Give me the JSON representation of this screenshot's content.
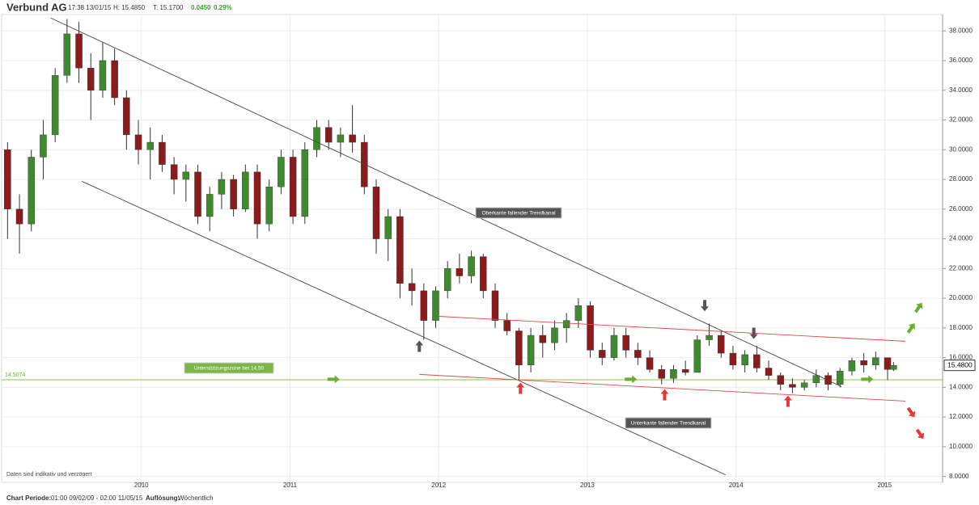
{
  "header": {
    "title": "Verbund AG",
    "time": "17:38 13/01/15",
    "high": "H: 15.4850",
    "low": "T: 15.1700",
    "change": "0.0450",
    "change_pct": "0.29%"
  },
  "footer": {
    "period_label": "Chart Periode:",
    "period": "01:00 09/02/09 - 02:00 11/05/15",
    "resolution_label": "Auflösung:",
    "resolution": "Wöchentlich"
  },
  "chart_data": {
    "type": "candlestick",
    "note": "Daten sind indikativ und verzögert",
    "xlim": [
      2009.06,
      2015.39
    ],
    "xticks": [
      2010,
      2011,
      2012,
      2013,
      2014,
      2015
    ],
    "ylim": [
      7.6,
      39.1
    ],
    "yticks": [
      {
        "value": 8,
        "label": "8.0000"
      },
      {
        "value": 10,
        "label": "10.0000"
      },
      {
        "value": 12,
        "label": "12.0000"
      },
      {
        "value": 14,
        "label": "14.0000"
      },
      {
        "value": 16,
        "label": "16.0000"
      },
      {
        "value": 18,
        "label": "18.0000"
      },
      {
        "value": 20,
        "label": "20.0000"
      },
      {
        "value": 22,
        "label": "22.0000"
      },
      {
        "value": 24,
        "label": "24.0000"
      },
      {
        "value": 26,
        "label": "26.0000"
      },
      {
        "value": 28,
        "label": "28.0000"
      },
      {
        "value": 30,
        "label": "30.0000"
      },
      {
        "value": 32,
        "label": "32.0000"
      },
      {
        "value": 34,
        "label": "34.0000"
      },
      {
        "value": 36,
        "label": "36.0000"
      },
      {
        "value": 38,
        "label": "38.0000"
      }
    ],
    "grid": true,
    "up_color": "#3d8b2e",
    "down_color": "#8a1c1c",
    "x": [
      2009.1,
      2009.18,
      2009.26,
      2009.34,
      2009.42,
      2009.5,
      2009.58,
      2009.66,
      2009.74,
      2009.82,
      2009.9,
      2009.98,
      2010.06,
      2010.14,
      2010.22,
      2010.3,
      2010.38,
      2010.46,
      2010.54,
      2010.62,
      2010.7,
      2010.78,
      2010.86,
      2010.94,
      2011.02,
      2011.1,
      2011.18,
      2011.26,
      2011.34,
      2011.42,
      2011.5,
      2011.58,
      2011.66,
      2011.74,
      2011.82,
      2011.9,
      2011.98,
      2012.06,
      2012.14,
      2012.22,
      2012.3,
      2012.38,
      2012.46,
      2012.54,
      2012.62,
      2012.7,
      2012.78,
      2012.86,
      2012.94,
      2013.02,
      2013.1,
      2013.18,
      2013.26,
      2013.34,
      2013.42,
      2013.5,
      2013.58,
      2013.66,
      2013.74,
      2013.82,
      2013.9,
      2013.98,
      2014.06,
      2014.14,
      2014.22,
      2014.3,
      2014.38,
      2014.46,
      2014.54,
      2014.62,
      2014.7,
      2014.78,
      2014.86,
      2014.94,
      2015.02,
      2015.06
    ],
    "open": [
      30,
      26,
      25,
      29.5,
      31,
      35,
      37.8,
      35.5,
      34,
      36,
      33.5,
      31,
      30,
      30.5,
      29,
      28,
      28.5,
      25.5,
      27,
      28,
      26,
      28.5,
      25,
      27.5,
      29.5,
      25.5,
      30,
      31.5,
      30.5,
      31,
      30.5,
      27.5,
      24,
      25.5,
      21,
      20.5,
      18.5,
      20.5,
      22,
      21.5,
      22.8,
      20.5,
      18.5,
      17.8,
      15.5,
      17.5,
      17,
      18,
      18.5,
      19.5,
      16.5,
      16,
      17.5,
      16.5,
      16,
      15.2,
      14.6,
      15.2,
      15,
      17.2,
      17.5,
      16.3,
      15.5,
      16.2,
      15.3,
      14.8,
      14.2,
      14,
      14.3,
      14.8,
      14.2,
      15.1,
      15.8,
      15.5,
      16,
      15.2
    ],
    "high": [
      30.5,
      27,
      30,
      32,
      35.5,
      38.8,
      38.6,
      36.5,
      37.2,
      36.8,
      34,
      32,
      31.5,
      31,
      29.5,
      29,
      29,
      27.5,
      28.5,
      28.3,
      29,
      29,
      28,
      30,
      30,
      30.5,
      32,
      32,
      31.5,
      33,
      31,
      28,
      26,
      26,
      22,
      21,
      20.8,
      22.5,
      23,
      23.2,
      23,
      21,
      19,
      18,
      18,
      18.2,
      18.5,
      19,
      20,
      19.8,
      17,
      18,
      18,
      17,
      16.5,
      15.5,
      15.5,
      15.8,
      17.5,
      18.3,
      17.8,
      16.8,
      16.5,
      16.8,
      15.8,
      15,
      14.6,
      14.5,
      15.2,
      15,
      15.3,
      16,
      16.3,
      16.4,
      16,
      15.7
    ],
    "low": [
      24,
      23,
      24.5,
      28,
      30.5,
      34.5,
      34.5,
      32,
      33.5,
      33,
      30,
      29,
      28,
      28.5,
      27,
      26.5,
      25,
      24.5,
      26,
      25.5,
      25.8,
      24,
      24.5,
      27,
      25,
      25,
      29.5,
      30,
      29.5,
      29.8,
      27,
      23,
      22.5,
      20,
      19.5,
      17.2,
      18,
      20,
      21,
      21,
      20,
      18,
      17.5,
      14.5,
      15,
      16,
      16.5,
      17,
      18,
      16,
      15.5,
      15.8,
      16,
      15.5,
      15,
      14.2,
      14.3,
      14.8,
      15,
      16.8,
      16,
      15.2,
      15,
      15,
      14.5,
      13.8,
      13.6,
      13.8,
      14,
      13.8,
      14,
      14.8,
      15,
      15.2,
      14.5,
      15.1
    ],
    "close": [
      26,
      25,
      29.5,
      31,
      35,
      37.8,
      35.5,
      34,
      36,
      33.5,
      31,
      30,
      30.5,
      29,
      28,
      28.5,
      25.5,
      27,
      28,
      26,
      28.5,
      25,
      27.5,
      29.5,
      25.5,
      30,
      31.5,
      30.5,
      31,
      30.5,
      27.5,
      24,
      25.5,
      21,
      20.5,
      18.5,
      20.5,
      22,
      21.5,
      22.8,
      20.5,
      18.5,
      17.8,
      15.5,
      17.5,
      17,
      18,
      18.5,
      19.5,
      16.5,
      16,
      17.5,
      16.5,
      16,
      15.2,
      14.6,
      15.2,
      15,
      17.2,
      17.5,
      16.3,
      15.5,
      16.2,
      15.3,
      14.8,
      14.2,
      14,
      14.3,
      14.8,
      14.2,
      15.1,
      15.8,
      15.5,
      16,
      15.2,
      15.48
    ],
    "price_marker": {
      "value": 15.48,
      "label": "15.4800"
    },
    "support_level": 14.5074,
    "support_color": "#8bc34a",
    "lines": [
      {
        "x": [
          2009.39,
          2014.71
        ],
        "y": [
          38.87,
          14.05
        ],
        "color": "#444444"
      },
      {
        "x": [
          2009.6,
          2013.93
        ],
        "y": [
          27.87,
          8.11
        ],
        "color": "#444444"
      },
      {
        "x": [
          2012.0,
          2015.14
        ],
        "y": [
          18.78,
          17.1
        ],
        "color": "#e04848"
      },
      {
        "x": [
          2011.87,
          2015.14
        ],
        "y": [
          14.87,
          13.07
        ],
        "color": "#e04848"
      }
    ],
    "annotations": [
      "Oberkante fallender Trendkanal",
      "Unterkante fallender Trendkanal",
      "Unterstützungszone bei 14,50"
    ],
    "arrows": [
      {
        "x": 2011.87,
        "y": 16.77,
        "dir": "up",
        "color": "#555555"
      },
      {
        "x": 2012.55,
        "y": 13.94,
        "dir": "up",
        "color": "#e53935"
      },
      {
        "x": 2013.52,
        "y": 13.5,
        "dir": "up",
        "color": "#e53935"
      },
      {
        "x": 2014.35,
        "y": 13.07,
        "dir": "up",
        "color": "#e53935"
      },
      {
        "x": 2013.79,
        "y": 19.5,
        "dir": "down",
        "color": "#555555"
      },
      {
        "x": 2014.12,
        "y": 17.64,
        "dir": "down",
        "color": "#555555"
      },
      {
        "x": 2011.29,
        "y": 14.54,
        "dir": "right",
        "color": "#6cad2f"
      },
      {
        "x": 2013.29,
        "y": 14.54,
        "dir": "right",
        "color": "#6cad2f"
      },
      {
        "x": 2014.88,
        "y": 14.54,
        "dir": "right",
        "color": "#6cad2f"
      },
      {
        "x": 2015.23,
        "y": 19.38,
        "dir": "up-right",
        "color": "#6cad2f"
      },
      {
        "x": 2015.18,
        "y": 18.0,
        "dir": "up-right",
        "color": "#6cad2f"
      },
      {
        "x": 2015.18,
        "y": 12.3,
        "dir": "down-right",
        "color": "#e53935"
      },
      {
        "x": 2015.24,
        "y": 10.84,
        "dir": "down-right",
        "color": "#e53935"
      }
    ]
  }
}
